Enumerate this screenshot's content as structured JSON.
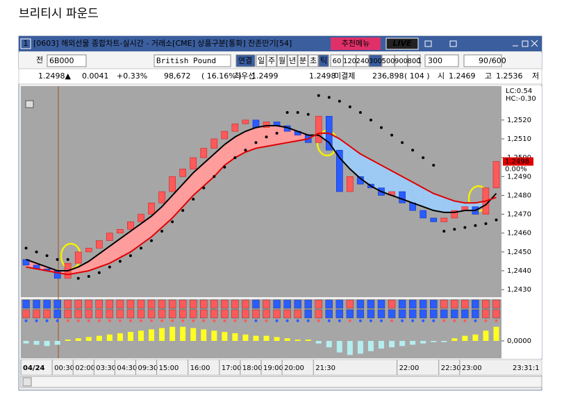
{
  "page_title": "브리티시 파운드",
  "window": {
    "number": "1",
    "title": "[0603] 해외선물 종합차트-실시간 - 거래소[CME] 상품구분[통화] 잔존만기[54]",
    "menu": "추천메뉴",
    "live": "LIVE"
  },
  "toolbar": {
    "all": "전",
    "code": "6B000",
    "name": "British Pound",
    "link": "연결",
    "periods": [
      "일",
      "주",
      "월",
      "년",
      "분",
      "초",
      "틱"
    ],
    "intervals": [
      "60",
      "120",
      "240",
      "300",
      "500",
      "900",
      "800"
    ],
    "count": "1",
    "ticks": "300",
    "shown": "90",
    "total": "/600"
  },
  "quote": {
    "price": "1.2498▲",
    "change": "0.0041",
    "rate": "+0.33%",
    "volume": "98,672",
    "volume_ratio": "( 16.16% )",
    "best_label": "최우선",
    "best_ask": "1.2499",
    "best_bid": "1.2498",
    "oi_label": "미결제",
    "oi": "236,898",
    "oi_change": "( 104 )",
    "open_label": "시",
    "open": "1.2469",
    "high_label": "고",
    "high": "1.2536",
    "low_label": "저"
  },
  "chart_data": {
    "type": "candlestick",
    "categories": [
      "04/24",
      null,
      null,
      "00:30",
      null,
      "02:00",
      null,
      "03:30",
      null,
      "04:30",
      null,
      "09:30",
      null,
      "15:00",
      null,
      null,
      "16:00",
      null,
      null,
      "17:00",
      null,
      "18:00",
      null,
      "19:00",
      null,
      "20:00",
      null,
      null,
      "21:30",
      null,
      null,
      null,
      null,
      null,
      null,
      null,
      "22:00",
      null,
      null,
      null,
      "22:30",
      null,
      "23:00",
      null,
      null,
      null
    ],
    "current_time": "23:31:1",
    "open": [
      1.2446,
      1.2443,
      1.2441,
      1.244,
      1.2436,
      1.2444,
      1.245,
      1.2452,
      1.2456,
      1.246,
      1.2462,
      1.2466,
      1.247,
      1.2476,
      1.2482,
      1.249,
      1.2494,
      1.25,
      1.2505,
      1.251,
      1.2514,
      1.2518,
      1.252,
      1.2516,
      1.2519,
      1.2517,
      1.2514,
      1.2512,
      1.2508,
      1.2522,
      1.2504,
      1.2482,
      1.249,
      1.2486,
      1.2484,
      1.248,
      1.2482,
      1.2476,
      1.2472,
      1.2468,
      1.2466,
      1.2468,
      1.2472,
      1.2474,
      1.247,
      1.2484
    ],
    "close": [
      1.2443,
      1.2441,
      1.244,
      1.2436,
      1.2444,
      1.245,
      1.2452,
      1.2456,
      1.246,
      1.2462,
      1.2466,
      1.247,
      1.2476,
      1.2482,
      1.249,
      1.2494,
      1.25,
      1.2505,
      1.251,
      1.2514,
      1.2518,
      1.252,
      1.2516,
      1.2519,
      1.2517,
      1.2514,
      1.2512,
      1.2508,
      1.2522,
      1.2504,
      1.2482,
      1.249,
      1.2486,
      1.2484,
      1.248,
      1.2482,
      1.2476,
      1.2472,
      1.2468,
      1.2466,
      1.2468,
      1.2472,
      1.2474,
      1.247,
      1.2484,
      1.2498
    ],
    "up_color": "#ff5a5a",
    "down_color": "#2a5cff",
    "lines": [
      {
        "color": "#000000",
        "values": [
          1.2446,
          1.2444,
          1.2442,
          1.244,
          1.244,
          1.2442,
          1.2445,
          1.2449,
          1.2453,
          1.2457,
          1.2461,
          1.2465,
          1.2469,
          1.2474,
          1.248,
          1.2486,
          1.2492,
          1.2497,
          1.2502,
          1.2507,
          1.2511,
          1.2514,
          1.2516,
          1.2517,
          1.2517,
          1.2516,
          1.2514,
          1.2512,
          1.2512,
          1.2508,
          1.25,
          1.2494,
          1.2489,
          1.2485,
          1.2482,
          1.248,
          1.2478,
          1.2476,
          1.2474,
          1.2472,
          1.2471,
          1.2471,
          1.2472,
          1.2472,
          1.2475,
          1.2481
        ]
      },
      {
        "color": "#e00000",
        "values": [
          1.2442,
          1.2441,
          1.244,
          1.2439,
          1.2438,
          1.2439,
          1.244,
          1.2442,
          1.2444,
          1.2447,
          1.245,
          1.2454,
          1.2458,
          1.2463,
          1.2468,
          1.2474,
          1.248,
          1.2485,
          1.249,
          1.2496,
          1.25,
          1.2503,
          1.2505,
          1.2506,
          1.2507,
          1.2508,
          1.2509,
          1.251,
          1.2513,
          1.2513,
          1.251,
          1.2506,
          1.2502,
          1.2499,
          1.2496,
          1.2493,
          1.249,
          1.2487,
          1.2484,
          1.2481,
          1.2479,
          1.2477,
          1.2476,
          1.2476,
          1.2477,
          1.2479
        ]
      }
    ],
    "band_colors": [
      "#ff9c9c",
      "#9ccaf5"
    ],
    "sar": {
      "color": "#000000",
      "values": [
        1.2452,
        1.245,
        1.2448,
        1.2446,
        1.2446,
        1.2436,
        1.2437,
        1.2439,
        1.2442,
        1.2445,
        1.2448,
        1.2452,
        1.2456,
        1.2461,
        1.2466,
        1.2472,
        1.2478,
        1.2484,
        1.249,
        1.2495,
        1.25,
        1.2504,
        1.2508,
        1.2511,
        1.2513,
        1.2524,
        1.2524,
        1.2523,
        1.2533,
        1.2532,
        1.253,
        1.2527,
        1.2524,
        1.252,
        1.2516,
        1.2512,
        1.2508,
        1.2504,
        1.25,
        1.2496,
        1.2461,
        1.2462,
        1.2463,
        1.2464,
        1.2465,
        1.2467
      ]
    },
    "ylim": [
      1.2426,
      1.2538
    ],
    "yticks": [
      {
        "value": 1.252,
        "label": "1,2520"
      },
      {
        "value": 1.251,
        "label": "1,2510"
      },
      {
        "value": 1.25,
        "label": "1,2500"
      },
      {
        "value": 1.249,
        "label": "1,2490"
      },
      {
        "value": 1.248,
        "label": "1,2480"
      },
      {
        "value": 1.247,
        "label": "1,2470"
      },
      {
        "value": 1.246,
        "label": "1,2460"
      },
      {
        "value": 1.245,
        "label": "1,2450"
      },
      {
        "value": 1.244,
        "label": "1,2440"
      },
      {
        "value": 1.243,
        "label": "1,2430"
      }
    ],
    "labels": [
      "LC:0.54",
      "HC:-0.30"
    ],
    "last_price": "1.2498",
    "last_rate": "0.00%",
    "oscillator": {
      "pos_color": "#ffff22",
      "neg_color": "#b4eef0",
      "values": [
        -4e-05,
        -6e-05,
        -8e-05,
        -6e-05,
        2e-05,
        4e-05,
        6e-05,
        8e-05,
        0.0001,
        0.00012,
        0.00014,
        0.00016,
        0.00018,
        0.0002,
        0.00022,
        0.00022,
        0.0002,
        0.00018,
        0.00016,
        0.00014,
        0.00012,
        0.0001,
        8e-05,
        8e-05,
        6e-05,
        4e-05,
        2e-05,
        2e-05,
        -4e-05,
        -0.0001,
        -0.00018,
        -0.00022,
        -0.0002,
        -0.00016,
        -0.00012,
        -0.0001,
        -8e-05,
        -6e-05,
        -4e-05,
        -2e-05,
        -2e-05,
        4e-05,
        8e-05,
        0.0001,
        0.00016,
        0.00022
      ],
      "ylim": [
        -0.00026,
        0.00026
      ],
      "yticks": [
        {
          "value": 0,
          "label": "0,0000"
        }
      ]
    }
  }
}
